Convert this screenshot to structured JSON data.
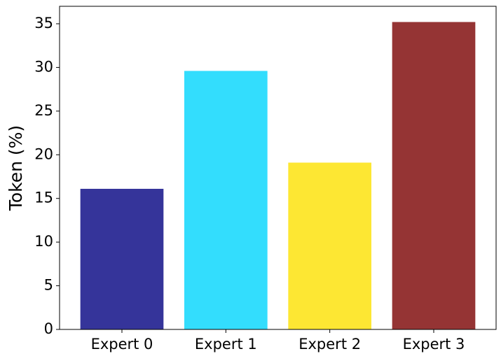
{
  "chart_data": {
    "type": "bar",
    "y_label": "Token (%)",
    "categories": [
      "Expert 0",
      "Expert 1",
      "Expert 2",
      "Expert 3"
    ],
    "values": [
      16.1,
      29.6,
      19.1,
      35.2
    ],
    "colors": [
      "#35349a",
      "#33ddfd",
      "#fde733",
      "#953434"
    ],
    "ylim": [
      0,
      37
    ],
    "yticks": [
      0,
      5,
      10,
      15,
      20,
      25,
      30,
      35
    ],
    "grid": false
  }
}
